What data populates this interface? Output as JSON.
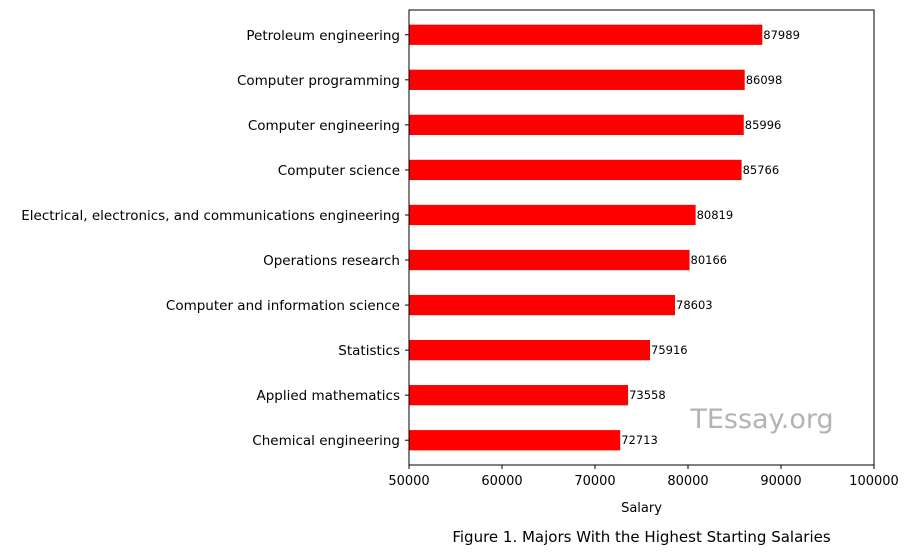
{
  "chart_data": {
    "type": "bar",
    "orientation": "horizontal",
    "categories": [
      "Petroleum engineering",
      "Computer programming",
      "Computer engineering",
      "Computer science",
      "Electrical, electronics, and communications engineering",
      "Operations research",
      "Computer and information science",
      "Statistics",
      "Applied mathematics",
      "Chemical engineering"
    ],
    "values": [
      87989,
      86098,
      85996,
      85766,
      80819,
      80166,
      78603,
      75916,
      73558,
      72713
    ],
    "xlabel": "Salary",
    "ylabel": "",
    "xlim": [
      50000,
      100000
    ],
    "xticks": [
      50000,
      60000,
      70000,
      80000,
      90000,
      100000
    ],
    "bar_color": "#ff0000",
    "grid": false,
    "watermark": "TEssay.org",
    "caption": "Figure 1. Majors With the Highest Starting Salaries"
  }
}
